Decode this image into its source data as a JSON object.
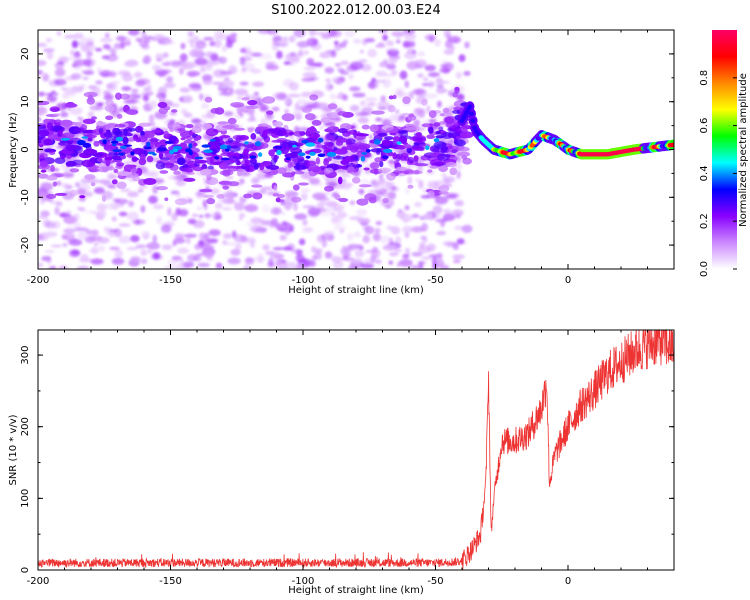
{
  "figure": {
    "title": "S100.2022.012.00.03.E24"
  },
  "chart_data": [
    {
      "type": "heatmap",
      "xlabel": "Height of straight line (km)",
      "ylabel": "Frequency (Hz)",
      "xlim": [
        -200,
        40
      ],
      "ylim": [
        -25,
        25
      ],
      "x_ticks": [
        -200,
        -150,
        -100,
        -50,
        0
      ],
      "y_ticks": [
        -20,
        -10,
        0,
        10,
        20
      ],
      "colorbar": {
        "label": "Normalized spectral amplitude",
        "range": [
          0.0,
          1.0
        ],
        "ticks": [
          0.0,
          0.2,
          0.4,
          0.6,
          0.8
        ],
        "colormap": [
          "#ffffff",
          "#cc88ff",
          "#8800ff",
          "#0000ff",
          "#00ffff",
          "#00ff00",
          "#ffff00",
          "#ff8800",
          "#ff0000",
          "#ff0066"
        ]
      },
      "ridge": [
        {
          "x": -200,
          "y": 1
        },
        {
          "x": -150,
          "y": 0
        },
        {
          "x": -100,
          "y": 0
        },
        {
          "x": -60,
          "y": 0
        },
        {
          "x": -45,
          "y": 1
        },
        {
          "x": -40,
          "y": 6
        },
        {
          "x": -37,
          "y": 9
        },
        {
          "x": -35,
          "y": 4
        },
        {
          "x": -32,
          "y": 2
        },
        {
          "x": -28,
          "y": 0
        },
        {
          "x": -22,
          "y": -1
        },
        {
          "x": -15,
          "y": 0
        },
        {
          "x": -10,
          "y": 3
        },
        {
          "x": -5,
          "y": 2
        },
        {
          "x": 0,
          "y": 0
        },
        {
          "x": 5,
          "y": -1
        },
        {
          "x": 15,
          "y": -1
        },
        {
          "x": 25,
          "y": 0
        },
        {
          "x": 40,
          "y": 1
        }
      ]
    },
    {
      "type": "line",
      "xlabel": "Height of straight line (km)",
      "ylabel": "SNR (10 * v/v)",
      "xlim": [
        -200,
        40
      ],
      "ylim": [
        0,
        335
      ],
      "x_ticks": [
        -200,
        -150,
        -100,
        -50,
        0
      ],
      "y_ticks": [
        0,
        100,
        200,
        300
      ],
      "series": [
        {
          "color": "#ee3333",
          "points": [
            {
              "x": -200,
              "y": 10
            },
            {
              "x": -150,
              "y": 10
            },
            {
              "x": -100,
              "y": 10
            },
            {
              "x": -50,
              "y": 10
            },
            {
              "x": -40,
              "y": 12
            },
            {
              "x": -36,
              "y": 30
            },
            {
              "x": -33,
              "y": 50
            },
            {
              "x": -31,
              "y": 120
            },
            {
              "x": -30,
              "y": 275
            },
            {
              "x": -29,
              "y": 50
            },
            {
              "x": -28,
              "y": 100
            },
            {
              "x": -25,
              "y": 180
            },
            {
              "x": -20,
              "y": 180
            },
            {
              "x": -15,
              "y": 190
            },
            {
              "x": -10,
              "y": 225
            },
            {
              "x": -8,
              "y": 265
            },
            {
              "x": -7,
              "y": 120
            },
            {
              "x": -5,
              "y": 160
            },
            {
              "x": 0,
              "y": 200
            },
            {
              "x": 5,
              "y": 230
            },
            {
              "x": 10,
              "y": 250
            },
            {
              "x": 15,
              "y": 275
            },
            {
              "x": 20,
              "y": 290
            },
            {
              "x": 25,
              "y": 305
            },
            {
              "x": 30,
              "y": 315
            },
            {
              "x": 35,
              "y": 320
            },
            {
              "x": 40,
              "y": 310
            }
          ]
        }
      ]
    }
  ]
}
